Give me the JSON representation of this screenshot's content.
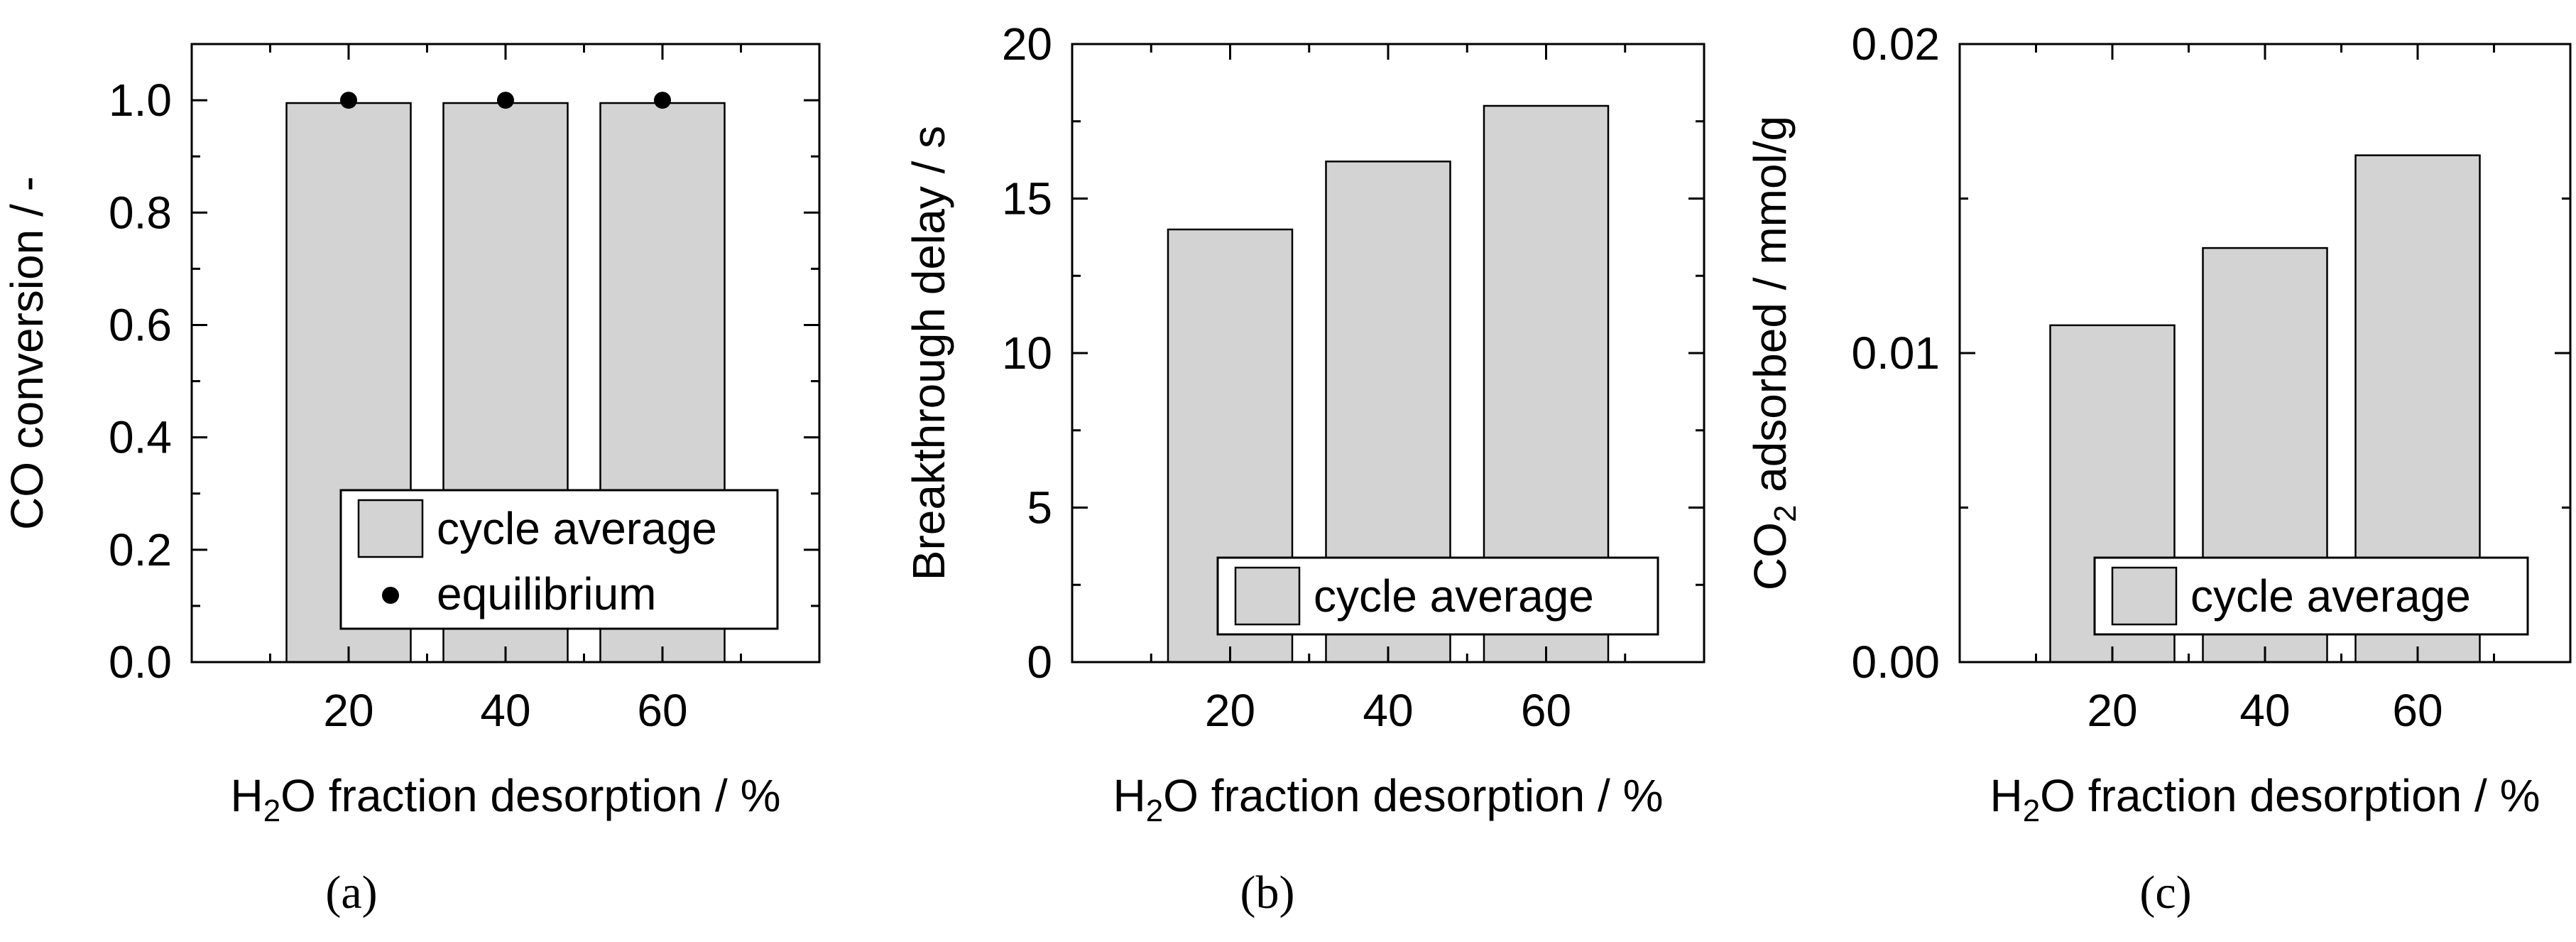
{
  "chart_data": [
    {
      "type": "bar",
      "panel_label": "(a)",
      "panel_letter": "a",
      "categories": [
        "20",
        "40",
        "60"
      ],
      "x": [
        20,
        40,
        60
      ],
      "xlim": [
        0,
        80
      ],
      "ylim": [
        0,
        1.1
      ],
      "yticks": [
        "0.0",
        "0.2",
        "0.4",
        "0.6",
        "0.8",
        "1.0"
      ],
      "ytick_values": [
        0,
        0.2,
        0.4,
        0.6,
        0.8,
        1.0
      ],
      "xlabel": {
        "pre": "H",
        "sub": "2",
        "post": "O fraction desorption / %"
      },
      "ylabel": {
        "pre": "CO conversion / -",
        "sub": "",
        "post": ""
      },
      "series": [
        {
          "name": "cycle average",
          "kind": "bar",
          "color": "#d3d3d3",
          "values": [
            0.995,
            0.995,
            0.995
          ]
        },
        {
          "name": "equilibrium",
          "kind": "point",
          "color": "#000000",
          "values": [
            1.0,
            1.0,
            1.0
          ]
        }
      ],
      "legend_position": "bottom-right"
    },
    {
      "type": "bar",
      "panel_label": "(b)",
      "panel_letter": "b",
      "categories": [
        "20",
        "40",
        "60"
      ],
      "x": [
        20,
        40,
        60
      ],
      "xlim": [
        0,
        80
      ],
      "ylim": [
        0,
        20
      ],
      "yticks": [
        "0",
        "5",
        "10",
        "15",
        "20"
      ],
      "ytick_values": [
        0,
        5,
        10,
        15,
        20
      ],
      "xlabel": {
        "pre": "H",
        "sub": "2",
        "post": "O fraction desorption / %"
      },
      "ylabel": {
        "pre": "Breakthrough delay / s",
        "sub": "",
        "post": ""
      },
      "series": [
        {
          "name": "cycle average",
          "kind": "bar",
          "color": "#d3d3d3",
          "values": [
            14.0,
            16.2,
            18.0
          ]
        }
      ],
      "legend_position": "bottom-right"
    },
    {
      "type": "bar",
      "panel_label": "(c)",
      "panel_letter": "c",
      "categories": [
        "20",
        "40",
        "60"
      ],
      "x": [
        20,
        40,
        60
      ],
      "xlim": [
        0,
        80
      ],
      "ylim": [
        0,
        0.02
      ],
      "yticks": [
        "0.00",
        "0.01",
        "0.02"
      ],
      "ytick_values": [
        0,
        0.01,
        0.02
      ],
      "xlabel": {
        "pre": "H",
        "sub": "2",
        "post": "O fraction desorption / %"
      },
      "ylabel": {
        "pre": "CO",
        "sub": "2",
        "post": " adsorbed / mmol/g"
      },
      "series": [
        {
          "name": "cycle average",
          "kind": "bar",
          "color": "#d3d3d3",
          "values": [
            0.0109,
            0.0134,
            0.0164
          ]
        }
      ],
      "legend_position": "bottom-right"
    }
  ]
}
